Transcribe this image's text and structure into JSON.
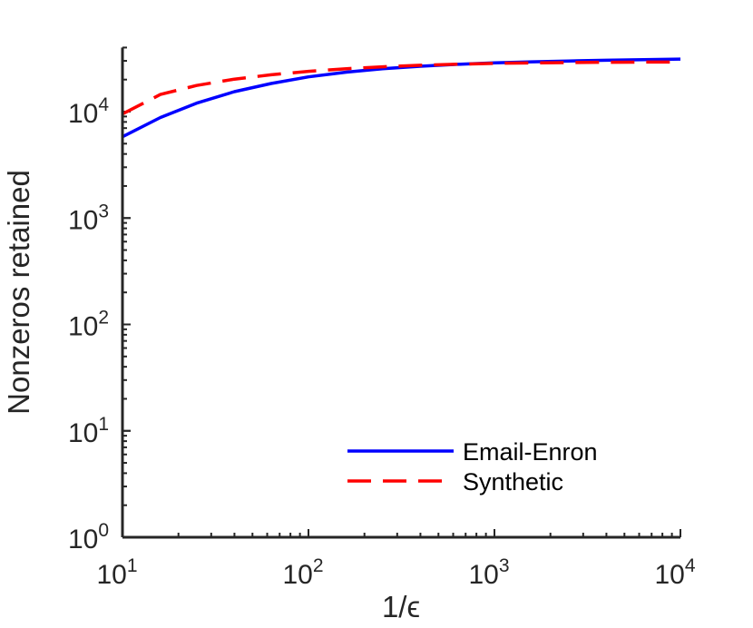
{
  "chart_data": {
    "type": "line",
    "xscale": "log",
    "yscale": "log",
    "xlim": [
      10,
      10000
    ],
    "ylim": [
      1,
      40000
    ],
    "xlabel": "1/ϵ",
    "ylabel": "Nonzeros retained",
    "x_ticks": [
      {
        "base": "10",
        "exp": "1"
      },
      {
        "base": "10",
        "exp": "2"
      },
      {
        "base": "10",
        "exp": "3"
      },
      {
        "base": "10",
        "exp": "4"
      }
    ],
    "y_ticks": [
      {
        "base": "10",
        "exp": "0"
      },
      {
        "base": "10",
        "exp": "1"
      },
      {
        "base": "10",
        "exp": "2"
      },
      {
        "base": "10",
        "exp": "3"
      },
      {
        "base": "10",
        "exp": "4"
      }
    ],
    "grid": false,
    "legend_position": "bottom-right",
    "series": [
      {
        "name": "Email-Enron",
        "color": "#0000ff",
        "style": "solid",
        "x": [
          10,
          16,
          25,
          40,
          63,
          100,
          160,
          250,
          400,
          630,
          1000,
          1600,
          2500,
          4000,
          6300,
          10000
        ],
        "y": [
          5800,
          8800,
          12000,
          15400,
          18400,
          21200,
          23500,
          25300,
          26700,
          27800,
          28700,
          29400,
          29900,
          30400,
          30800,
          31200
        ]
      },
      {
        "name": "Synthetic",
        "color": "#ff0000",
        "style": "dashed",
        "x": [
          10,
          16,
          25,
          40,
          63,
          100,
          160,
          250,
          400,
          630,
          1000,
          1600,
          2500,
          4000,
          6300,
          10000
        ],
        "y": [
          9500,
          14500,
          17600,
          20200,
          22200,
          23900,
          25300,
          26400,
          27300,
          27900,
          28400,
          28700,
          28900,
          29100,
          29200,
          29300
        ]
      }
    ]
  }
}
